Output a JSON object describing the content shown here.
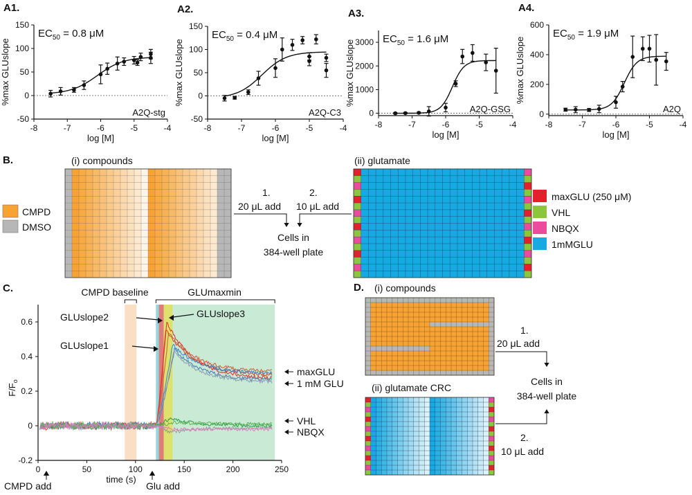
{
  "colors": {
    "cmpd": "#f7a233",
    "dmso": "#b7b7b7",
    "max_glu": "#e4202a",
    "vhl": "#8cc63f",
    "nbqx": "#ec4a9a",
    "glu_1mm": "#17a9e1"
  },
  "panel_a": {
    "x_axis_label": "log [M]",
    "y_axis_label": "%max GLUslope"
  },
  "chart_data": [
    {
      "type": "scatter",
      "panel_label": "A1.",
      "ec50_label": "EC",
      "ec50_sub": "50",
      "ec50_value": " = 0.8 μM",
      "construct": "A2Q-stg",
      "xlabel": "log [M]",
      "ylabel": "%max GLUslope",
      "xlim": [
        -8,
        -4
      ],
      "ylim": [
        -50,
        150
      ],
      "xticks": [
        -8,
        -7,
        -6,
        -5,
        -4
      ],
      "yticks": [
        -50,
        0,
        50,
        100,
        150
      ],
      "points": [
        {
          "x": -7.5,
          "y": 4,
          "err": 7
        },
        {
          "x": -7.2,
          "y": 9,
          "err": 8
        },
        {
          "x": -6.8,
          "y": 12,
          "err": 5
        },
        {
          "x": -6.5,
          "y": 22,
          "err": 9
        },
        {
          "x": -6.0,
          "y": 45,
          "err": 20
        },
        {
          "x": -5.8,
          "y": 57,
          "err": 12
        },
        {
          "x": -5.5,
          "y": 68,
          "err": 14
        },
        {
          "x": -5.3,
          "y": 72,
          "err": 8
        },
        {
          "x": -5.0,
          "y": 75,
          "err": 8
        },
        {
          "x": -4.9,
          "y": 70,
          "err": 6
        },
        {
          "x": -4.8,
          "y": 82,
          "err": 8
        },
        {
          "x": -4.5,
          "y": 80,
          "err": 12
        },
        {
          "x": -4.5,
          "y": 88,
          "err": 10
        }
      ],
      "fit": {
        "bottom": 3,
        "top": 82,
        "log_ec50": -6.1,
        "hill": 1.1
      }
    },
    {
      "type": "scatter",
      "panel_label": "A2.",
      "ec50_label": "EC",
      "ec50_sub": "50",
      "ec50_value": " = 0.4 μM",
      "construct": "A2Q-C3",
      "xlabel": "log [M]",
      "ylabel": "%max GLUslope",
      "xlim": [
        -8,
        -4
      ],
      "ylim": [
        -50,
        150
      ],
      "xticks": [
        -8,
        -7,
        -6,
        -5,
        -4
      ],
      "yticks": [
        -50,
        0,
        50,
        100,
        150
      ],
      "points": [
        {
          "x": -7.5,
          "y": -5,
          "err": 6
        },
        {
          "x": -7.2,
          "y": -4,
          "err": 3
        },
        {
          "x": -6.8,
          "y": 8,
          "err": 5
        },
        {
          "x": -6.5,
          "y": 38,
          "err": 15
        },
        {
          "x": -6.0,
          "y": 60,
          "err": 20
        },
        {
          "x": -5.8,
          "y": 100,
          "err": 25
        },
        {
          "x": -5.5,
          "y": 110,
          "err": 12
        },
        {
          "x": -5.2,
          "y": 120,
          "err": 8
        },
        {
          "x": -5.0,
          "y": 75,
          "err": 10
        },
        {
          "x": -5.0,
          "y": 85,
          "err": 8
        },
        {
          "x": -4.8,
          "y": 122,
          "err": 10
        },
        {
          "x": -4.5,
          "y": 82,
          "err": 8
        },
        {
          "x": -4.5,
          "y": 55,
          "err": 15
        }
      ],
      "fit": {
        "bottom": -5,
        "top": 95,
        "log_ec50": -6.4,
        "hill": 1.2
      }
    },
    {
      "type": "scatter",
      "panel_label": "A3.",
      "ec50_label": "EC",
      "ec50_sub": "50",
      "ec50_value": " = 1.6 μM",
      "construct": "A2Q-GSG",
      "xlabel": "log [M]",
      "ylabel": "%max GLUslope",
      "xlim": [
        -8,
        -4
      ],
      "ylim": [
        -100,
        3500
      ],
      "xticks": [
        -8,
        -7,
        -6,
        -5,
        -4
      ],
      "yticks": [
        0,
        1000,
        2000,
        3000
      ],
      "points": [
        {
          "x": -7.5,
          "y": 0,
          "err": 30
        },
        {
          "x": -7.2,
          "y": 5,
          "err": 30
        },
        {
          "x": -6.8,
          "y": 20,
          "err": 30
        },
        {
          "x": -6.5,
          "y": 80,
          "err": 200
        },
        {
          "x": -6.0,
          "y": 240,
          "err": 180
        },
        {
          "x": -5.7,
          "y": 1250,
          "err": 120
        },
        {
          "x": -5.5,
          "y": 2400,
          "err": 300
        },
        {
          "x": -5.2,
          "y": 2550,
          "err": 350
        },
        {
          "x": -4.8,
          "y": 2150,
          "err": 350
        },
        {
          "x": -4.5,
          "y": 1800,
          "err": 950
        }
      ],
      "fit": {
        "bottom": 0,
        "top": 2230,
        "log_ec50": -5.8,
        "hill": 2.5
      }
    },
    {
      "type": "scatter",
      "panel_label": "A4.",
      "ec50_label": "EC",
      "ec50_sub": "50",
      "ec50_value": " = 1.9 μM",
      "construct": "A2Q",
      "xlabel": "log [M]",
      "ylabel": "%max GLUslope",
      "xlim": [
        -8,
        -4
      ],
      "ylim": [
        -10,
        600
      ],
      "xticks": [
        -8,
        -7,
        -6,
        -5,
        -4
      ],
      "yticks": [
        0,
        200,
        400,
        600
      ],
      "points": [
        {
          "x": -7.5,
          "y": 30,
          "err": 10
        },
        {
          "x": -7.2,
          "y": 30,
          "err": 20
        },
        {
          "x": -6.8,
          "y": 28,
          "err": 10
        },
        {
          "x": -6.5,
          "y": 35,
          "err": 25
        },
        {
          "x": -6.0,
          "y": 80,
          "err": 40
        },
        {
          "x": -5.8,
          "y": 185,
          "err": 35
        },
        {
          "x": -5.5,
          "y": 385,
          "err": 140
        },
        {
          "x": -5.2,
          "y": 440,
          "err": 80
        },
        {
          "x": -5.0,
          "y": 440,
          "err": 90
        },
        {
          "x": -4.8,
          "y": 365,
          "err": 170
        },
        {
          "x": -4.5,
          "y": 355,
          "err": 60
        }
      ],
      "fit": {
        "bottom": 28,
        "top": 390,
        "log_ec50": -5.75,
        "hill": 2.3
      }
    },
    {
      "type": "line",
      "panel_label": "C.",
      "xlabel": "time (s)",
      "ylabel_main": "F/F",
      "ylabel_sub": "o",
      "xlim": [
        0,
        250
      ],
      "ylim": [
        -0.2,
        0.7
      ],
      "xticks": [
        0,
        50,
        100,
        150,
        200,
        250
      ],
      "yticks": [
        -0.2,
        0,
        0.2,
        0.4,
        0.6
      ],
      "ytick_labels": [
        "-0.2",
        "0",
        "0.2",
        "0.4",
        "0.6"
      ],
      "windows": [
        {
          "label": "CMPD baseline",
          "x0": 89,
          "x1": 101,
          "color": "#f7dcbf"
        },
        {
          "label": "GLUmaxmin",
          "x0": 121,
          "x1": 243,
          "color": "#c3e9d2"
        },
        {
          "label": "GLUslope1",
          "x0": 121,
          "x1": 124,
          "color": "#8fd3e0"
        },
        {
          "label": "GLUslope2",
          "x0": 124,
          "x1": 129,
          "color": "#e07070"
        },
        {
          "label": "GLUslope3",
          "x0": 129,
          "x1": 138,
          "color": "#e0e060"
        }
      ],
      "series": [
        {
          "name": "maxGLU",
          "color": "#d1492d",
          "base": 0.0,
          "peak": 0.56,
          "peak_t": 131,
          "plateau": 0.29
        },
        {
          "name": "maxGLU",
          "color": "#e0302a",
          "base": 0.0,
          "peak": 0.6,
          "peak_t": 132,
          "plateau": 0.27
        },
        {
          "name": "maxGLU",
          "color": "#c9603a",
          "base": 0.0,
          "peak": 0.54,
          "peak_t": 134,
          "plateau": 0.31
        },
        {
          "name": "1 mM GLU",
          "color": "#3b86c8",
          "base": 0.0,
          "peak": 0.47,
          "peak_t": 138,
          "plateau": 0.3
        },
        {
          "name": "1 mM GLU",
          "color": "#4a78b6",
          "base": 0.0,
          "peak": 0.44,
          "peak_t": 140,
          "plateau": 0.26
        },
        {
          "name": "1 mM GLU",
          "color": "#8f9fb0",
          "base": 0.0,
          "peak": 0.43,
          "peak_t": 139,
          "plateau": 0.25
        },
        {
          "name": "VHL",
          "color": "#2f9a45",
          "base": 0.0,
          "peak": 0.04,
          "peak_t": 135,
          "plateau": 0.0
        },
        {
          "name": "VHL",
          "color": "#5fb356",
          "base": 0.0,
          "peak": 0.02,
          "peak_t": 140,
          "plateau": 0.01
        },
        {
          "name": "NBQX",
          "color": "#9a9a9a",
          "base": 0.0,
          "peak": -0.04,
          "peak_t": 135,
          "plateau": -0.01
        },
        {
          "name": "NBQX",
          "color": "#e27bc0",
          "base": 0.0,
          "peak": -0.02,
          "peak_t": 138,
          "plateau": -0.02
        }
      ]
    }
  ],
  "panel_b": {
    "label": "B.",
    "compounds_title": "(i) compounds",
    "glutamate_title": "(ii) glutamate",
    "step1_num": "1.",
    "step1_text": "20 μL add",
    "step2_num": "2.",
    "step2_text": "10 μL add",
    "cells_line1": "Cells in",
    "cells_line2": "384-well plate",
    "legend_left": [
      {
        "label": "CMPD",
        "color": "#f7a233"
      },
      {
        "label": "DMSO",
        "color": "#b7b7b7"
      }
    ],
    "legend_right": [
      {
        "label": "maxGLU (250 μM)",
        "color": "#e4202a"
      },
      {
        "label": "VHL",
        "color": "#8cc63f"
      },
      {
        "label": "NBQX",
        "color": "#ec4a9a"
      },
      {
        "label": "1mMGLU",
        "color": "#17a9e1"
      }
    ]
  },
  "panel_c": {
    "label": "C.",
    "window_cmpd": "CMPD baseline",
    "window_glu": "GLUmaxmin",
    "slope1": "GLUslope1",
    "slope2": "GLUslope2",
    "slope3": "GLUslope3",
    "trace_maxglu": "maxGLU",
    "trace_1mm": "1 mM GLU",
    "trace_vhl": "VHL",
    "trace_nbqx": "NBQX",
    "cmpd_add": "CMPD add",
    "glu_add": "Glu add"
  },
  "panel_d": {
    "label": "D.",
    "compounds_title": "(i) compounds",
    "glutamate_title": "(ii) glutamate CRC",
    "step1_num": "1.",
    "step1_text": "20 μL add",
    "step2_num": "2.",
    "step2_text": "10 μL add",
    "cells_line1": "Cells in",
    "cells_line2": "384-well plate"
  }
}
